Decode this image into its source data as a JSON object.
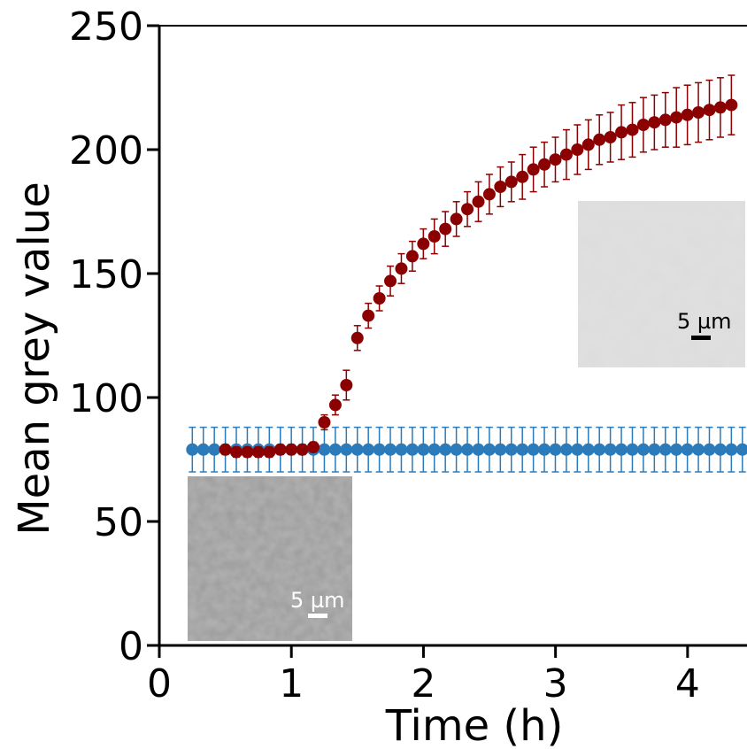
{
  "chart_data": {
    "type": "scatter",
    "xlabel": "Time (h)",
    "ylabel": "Mean grey value",
    "xlim": [
      0,
      4.45
    ],
    "ylim": [
      0,
      250
    ],
    "xticks": [
      0,
      1,
      2,
      3,
      4
    ],
    "yticks": [
      0,
      50,
      100,
      150,
      200,
      250
    ],
    "grid": false,
    "series": [
      {
        "color": "#2b7bba",
        "start": 0.25,
        "step": 0.0833,
        "values": [
          79,
          79,
          79,
          79,
          79,
          79,
          79,
          79,
          79,
          79,
          79,
          79,
          79,
          79,
          79,
          79,
          79,
          79,
          79,
          79,
          79,
          79,
          79,
          79,
          79,
          79,
          79,
          79,
          79,
          79,
          79,
          79,
          79,
          79,
          79,
          79,
          79,
          79,
          79,
          79,
          79,
          79,
          79,
          79,
          79,
          79,
          79,
          79,
          79,
          79,
          79,
          79
        ],
        "error": 9
      },
      {
        "color": "#8b0000",
        "start": 0.5,
        "step": 0.0833,
        "values": [
          79,
          78,
          78,
          78,
          78,
          79,
          79,
          79,
          80,
          90,
          97,
          105,
          124,
          133,
          140,
          147,
          152,
          157,
          162,
          165,
          168,
          172,
          176,
          179,
          182,
          185,
          187,
          189,
          192,
          194,
          196,
          198,
          200,
          202,
          204,
          205,
          207,
          208,
          210,
          211,
          212,
          213,
          214,
          215,
          216,
          217,
          218
        ],
        "error": [
          2,
          2,
          2,
          2,
          2,
          2,
          2,
          2,
          2,
          3,
          4,
          6,
          5,
          5,
          5,
          6,
          6,
          6,
          6,
          7,
          7,
          7,
          7,
          8,
          8,
          8,
          8,
          9,
          9,
          9,
          9,
          10,
          10,
          10,
          10,
          10,
          11,
          11,
          11,
          11,
          11,
          12,
          12,
          12,
          12,
          12,
          12
        ]
      }
    ],
    "insets": [
      {
        "scale_label": "5 µm",
        "shade": "#9a9a9a"
      },
      {
        "scale_label": "5 µm",
        "shade": "#dcdcdc"
      }
    ]
  }
}
